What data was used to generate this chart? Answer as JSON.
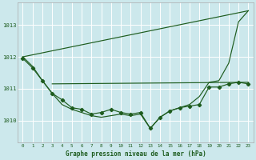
{
  "title": "Graphe pression niveau de la mer (hPa)",
  "bg_color": "#cce8ec",
  "grid_color": "#ffffff",
  "line_color": "#1e5c1e",
  "xlim": [
    -0.5,
    23.5
  ],
  "ylim": [
    1009.3,
    1013.7
  ],
  "yticks": [
    1010,
    1011,
    1012,
    1013
  ],
  "xticks": [
    0,
    1,
    2,
    3,
    4,
    5,
    6,
    7,
    8,
    9,
    10,
    11,
    12,
    13,
    14,
    15,
    16,
    17,
    18,
    19,
    20,
    21,
    22,
    23
  ],
  "series_main": {
    "x": [
      0,
      1,
      2,
      3,
      4,
      5,
      6,
      7,
      8,
      9,
      10,
      11,
      12,
      13,
      14,
      15,
      16,
      17,
      18,
      19,
      20,
      21,
      22,
      23
    ],
    "y": [
      1011.95,
      1011.65,
      1011.25,
      1010.85,
      1010.65,
      1010.4,
      1010.35,
      1010.2,
      1010.25,
      1010.35,
      1010.25,
      1010.2,
      1010.25,
      1009.75,
      1010.1,
      1010.3,
      1010.4,
      1010.45,
      1010.5,
      1011.05,
      1011.05,
      1011.15,
      1011.2,
      1011.15
    ]
  },
  "series_smooth": {
    "x": [
      0,
      1,
      2,
      3,
      4,
      5,
      6,
      7,
      8,
      9,
      10,
      11,
      12,
      13,
      14,
      15,
      16,
      17,
      18,
      19,
      20,
      21,
      22,
      23
    ],
    "y": [
      1012.0,
      1011.7,
      1011.25,
      1010.85,
      1010.5,
      1010.35,
      1010.25,
      1010.15,
      1010.1,
      1010.15,
      1010.2,
      1010.15,
      1010.2,
      1009.75,
      1010.1,
      1010.3,
      1010.4,
      1010.5,
      1010.75,
      1011.2,
      1011.25,
      1011.8,
      1013.1,
      1013.45
    ]
  },
  "series_diag": {
    "x": [
      0,
      23
    ],
    "y": [
      1012.0,
      1013.45
    ]
  },
  "series_flat": {
    "x": [
      3,
      23
    ],
    "y": [
      1011.15,
      1011.2
    ]
  }
}
